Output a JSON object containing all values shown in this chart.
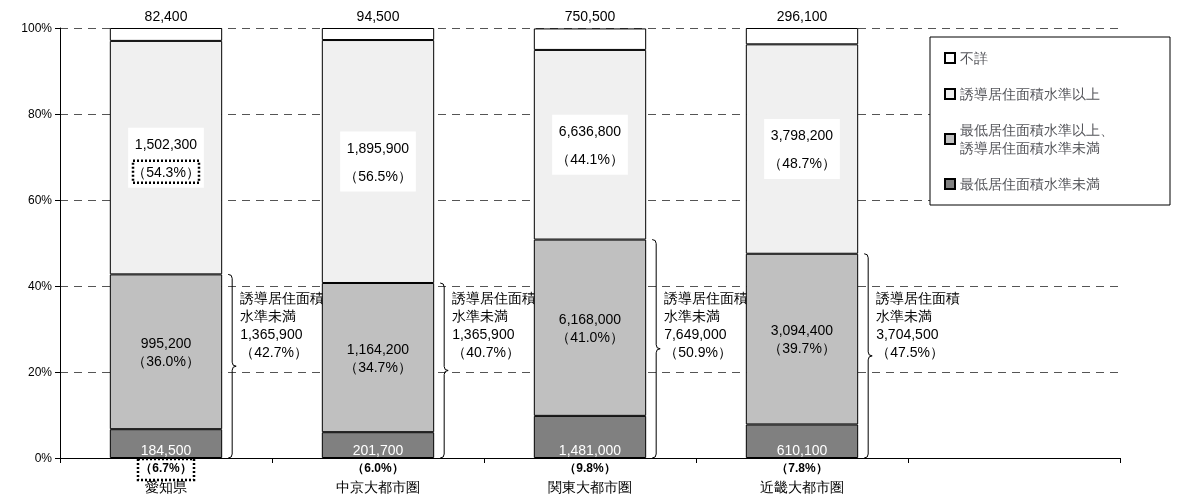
{
  "chart_data": {
    "type": "bar",
    "stacked": true,
    "categories": [
      "愛知県",
      "中京大都市圏",
      "関東大都市圏",
      "近畿大都市圏",
      null
    ],
    "series": [
      {
        "name": "最低居住面積水準未満",
        "color": "#808080",
        "values": [
          6.7,
          6.0,
          9.8,
          7.8,
          null
        ],
        "value_labels": [
          "184,500\n（6.7%）",
          "201,700\n（6.0%）",
          "1,481,000\n（9.8%）",
          "610,100\n（7.8%）",
          null
        ]
      },
      {
        "name": "最低居住面積水準以上、誘導居住面積水準未満",
        "color": "#c0c0c0",
        "values": [
          36.0,
          34.7,
          41.0,
          39.7,
          null
        ],
        "value_labels": [
          "995,200\n（36.0%）",
          "1,164,200\n（34.7%）",
          "6,168,000\n（41.0%）",
          "3,094,400\n（39.7%）",
          null
        ]
      },
      {
        "name": "誘導居住面積水準以上",
        "color": "#f0f0f0",
        "values": [
          54.3,
          56.5,
          44.1,
          48.7,
          null
        ],
        "value_labels": [
          "1,502,300\n（54.3%）",
          "1,895,900\n（56.5%）",
          "6,636,800\n（44.1%）",
          "3,798,200\n（48.7%）",
          null
        ]
      },
      {
        "name": "不詳",
        "color": "#ffffff",
        "values": [
          3.0,
          2.8,
          5.0,
          3.8,
          null
        ]
      }
    ],
    "ylim": [
      0,
      100
    ],
    "yticks": [
      {
        "value": 0,
        "label": "0%"
      },
      {
        "value": 20,
        "label": "20%"
      },
      {
        "value": 40,
        "label": "40%"
      },
      {
        "value": 60,
        "label": "60%"
      },
      {
        "value": 80,
        "label": "80%"
      },
      {
        "value": 100,
        "label": "100%"
      }
    ],
    "grid": "y",
    "legend": "top right",
    "annotations": [
      {
        "text": "82,400",
        "x": "愛知県",
        "y": 100
      },
      {
        "text": "94,500",
        "x": "中京大都市圏",
        "y": 100
      },
      {
        "text": "750,500",
        "x": "関東大都市圏",
        "y": 100
      },
      {
        "text": "296,100",
        "x": "近畿大都市圏",
        "y": 100
      },
      "誘導居住面積水準未満\n1,365,900\n（42.7%）",
      "誘導居住面積水準未満\n1,365,900\n（40.7%）",
      "誘導居住面積水準未満\n7,649,000\n（50.9%）",
      "誘導居住面積水準未満\n3,704,500\n（47.5%）"
    ]
  }
}
